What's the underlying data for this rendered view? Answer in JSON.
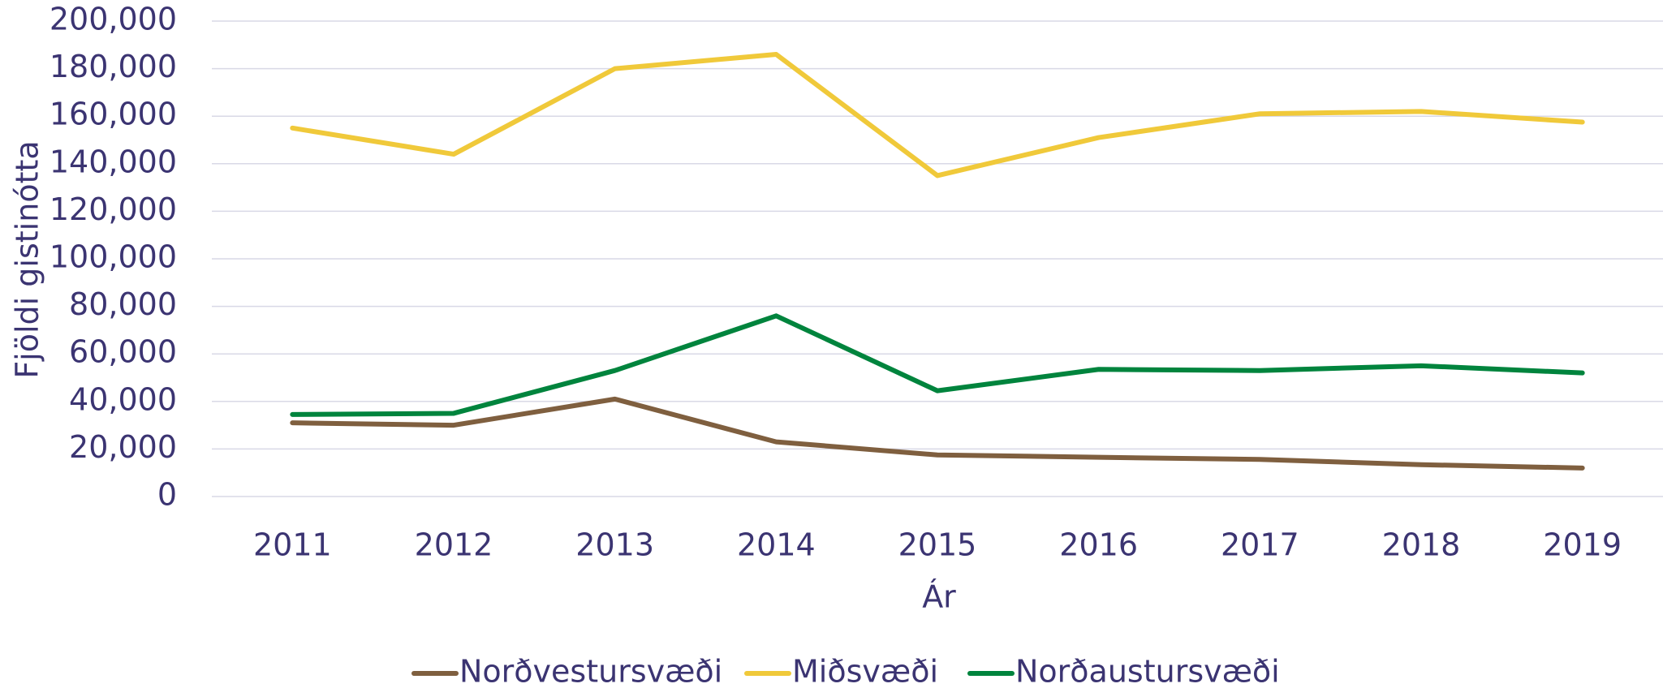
{
  "chart_data": {
    "type": "line",
    "x_label": "Ár",
    "y_label": "Fjöldi gistinótta",
    "categories": [
      "2011",
      "2012",
      "2013",
      "2014",
      "2015",
      "2016",
      "2017",
      "2018",
      "2019"
    ],
    "series": [
      {
        "name": "Norðvestursvæði",
        "color": "#7f5f3f",
        "values": [
          31000,
          30000,
          41000,
          23000,
          17500,
          16500,
          15600,
          13400,
          12000
        ]
      },
      {
        "name": "Miðsvæði",
        "color": "#f0c93a",
        "values": [
          155000,
          144000,
          180000,
          186000,
          135000,
          151000,
          161000,
          162000,
          157500
        ]
      },
      {
        "name": "Norðaustursvæði",
        "color": "#00843d",
        "values": [
          34500,
          35000,
          53000,
          76000,
          44500,
          53500,
          53000,
          55000,
          52000
        ]
      }
    ],
    "ylim": [
      0,
      200000
    ],
    "yticks": [
      0,
      {
        "value": 20000,
        "label": "20,000"
      },
      {
        "value": 40000,
        "label": "40,000"
      },
      {
        "value": 60000,
        "label": "60,000"
      },
      {
        "value": 80000,
        "label": "80,000"
      },
      {
        "value": 100000,
        "label": "100,000"
      },
      {
        "value": 120000,
        "label": "120,000"
      },
      {
        "value": 140000,
        "label": "140,000"
      },
      {
        "value": 160000,
        "label": "160,000"
      },
      {
        "value": 180000,
        "label": "180,000"
      },
      {
        "value": 200000,
        "label": "200,000"
      }
    ],
    "grid": true,
    "legend": "bottom"
  }
}
